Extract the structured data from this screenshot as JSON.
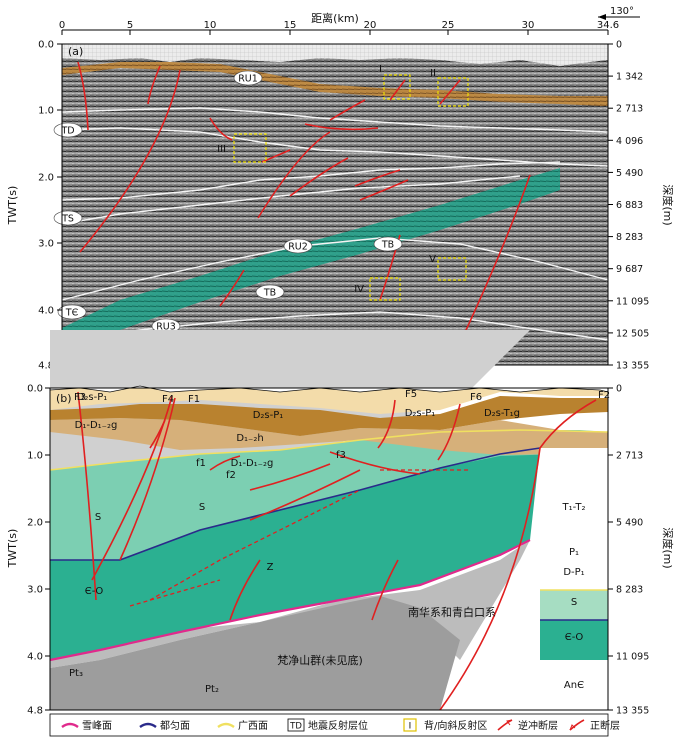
{
  "title": "距离(km)",
  "orientation": "130°",
  "x_ticks": [
    "0",
    "5",
    "10",
    "15",
    "20",
    "25",
    "30",
    "34.6"
  ],
  "y_axis_label": "TWT(s)",
  "depth_axis_label": "深度(m)",
  "panel_a": {
    "label": "(a)",
    "y_ticks": [
      "0.0",
      "1.0",
      "2.0",
      "3.0",
      "4.0",
      "4.8"
    ],
    "depth_ticks": [
      "0",
      "1 342",
      "2 713",
      "4 096",
      "5 490",
      "6 883",
      "8 283",
      "9 687",
      "11 095",
      "12 505",
      "13 355"
    ],
    "horizon_labels": [
      "RU1",
      "TD",
      "TS",
      "RU2",
      "TB",
      "TB",
      "TЄ",
      "RU3"
    ],
    "zone_labels": [
      "I",
      "II",
      "III",
      "IV",
      "V"
    ]
  },
  "panel_b": {
    "label": "(b)",
    "y_ticks": [
      "0.0",
      "1.0",
      "2.0",
      "3.0",
      "4.0",
      "4.8"
    ],
    "depth_ticks": [
      "0",
      "2 713",
      "5 490",
      "8 283",
      "11 095",
      "13 355"
    ],
    "fault_labels": [
      "F3",
      "F4",
      "F1",
      "F5",
      "F6",
      "F2"
    ],
    "minor_fault_labels": [
      "f1",
      "f2",
      "f3"
    ],
    "unit_labels": [
      "D₂s-P₁",
      "D₁-D₁₋₂g",
      "D₂s-P₁",
      "D₁₋₂h",
      "D₁-D₁₋₂g",
      "D₂s-P₁",
      "D₂s-T₁g",
      "S",
      "S",
      "Є-O",
      "Z",
      "T₁-T₂",
      "P₁",
      "D-P₁",
      "S",
      "Є-O",
      "AnЄ",
      "Pt₃",
      "Pt₂"
    ],
    "region_labels": [
      "南华系和青白口系",
      "梵净山群(未见底)"
    ]
  },
  "legend": [
    {
      "color": "#e02a8c",
      "label": "雪峰面"
    },
    {
      "color": "#2a2a8a",
      "label": "都匀面"
    },
    {
      "color": "#f0e060",
      "label": "广西面"
    },
    {
      "symbol": "TD",
      "label": "地震反射层位"
    },
    {
      "symbol": "I",
      "label": "背/向斜反射区"
    },
    {
      "color": "#e02020",
      "label": "逆冲断层"
    },
    {
      "color": "#e02020",
      "label": "正断层"
    }
  ]
}
